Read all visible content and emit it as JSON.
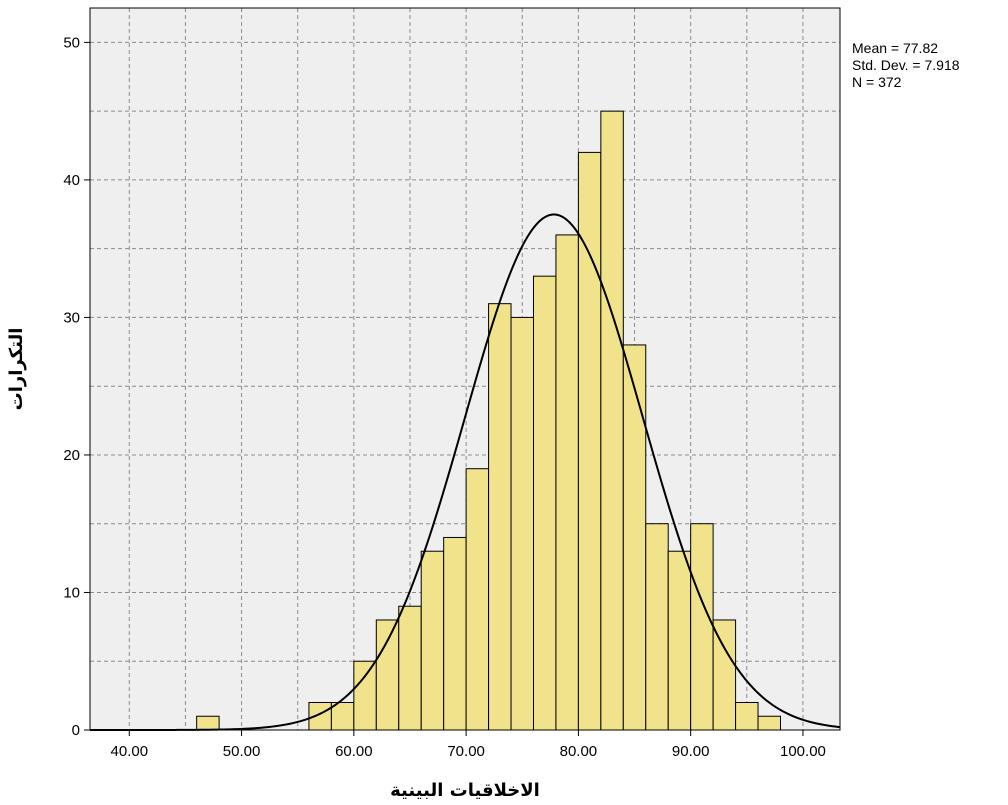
{
  "chart_data": {
    "type": "bar",
    "subtype": "histogram",
    "xlabel": "الاخلاقيات البينية",
    "ylabel": "التكرارات",
    "x_ticks": [
      "40.00",
      "50.00",
      "60.00",
      "70.00",
      "80.00",
      "90.00",
      "100.00"
    ],
    "y_ticks": [
      "0",
      "10",
      "20",
      "30",
      "40",
      "50"
    ],
    "xlim": [
      36.5,
      103.3
    ],
    "ylim": [
      0,
      52.5
    ],
    "bin_width": 2,
    "bins": [
      {
        "start": 46,
        "end": 48,
        "count": 1
      },
      {
        "start": 56,
        "end": 58,
        "count": 2
      },
      {
        "start": 58,
        "end": 60,
        "count": 2
      },
      {
        "start": 60,
        "end": 62,
        "count": 5
      },
      {
        "start": 62,
        "end": 64,
        "count": 8
      },
      {
        "start": 64,
        "end": 66,
        "count": 9
      },
      {
        "start": 66,
        "end": 68,
        "count": 13
      },
      {
        "start": 68,
        "end": 70,
        "count": 14
      },
      {
        "start": 70,
        "end": 72,
        "count": 19
      },
      {
        "start": 72,
        "end": 74,
        "count": 31
      },
      {
        "start": 74,
        "end": 76,
        "count": 30
      },
      {
        "start": 76,
        "end": 78,
        "count": 33
      },
      {
        "start": 78,
        "end": 80,
        "count": 36
      },
      {
        "start": 80,
        "end": 82,
        "count": 42
      },
      {
        "start": 82,
        "end": 84,
        "count": 45
      },
      {
        "start": 84,
        "end": 86,
        "count": 28
      },
      {
        "start": 86,
        "end": 88,
        "count": 15
      },
      {
        "start": 88,
        "end": 90,
        "count": 13
      },
      {
        "start": 90,
        "end": 92,
        "count": 15
      },
      {
        "start": 92,
        "end": 94,
        "count": 8
      },
      {
        "start": 94,
        "end": 96,
        "count": 2
      },
      {
        "start": 96,
        "end": 98,
        "count": 1
      }
    ],
    "normal_curve": {
      "mean": 77.82,
      "std_dev": 7.918,
      "n": 372
    },
    "grid": true,
    "legend_position": "top-right",
    "stats_text": {
      "mean": "Mean = 77.82",
      "std_dev": "Std. Dev. = 7.918",
      "n": "N = 372"
    },
    "colors": {
      "bar_fill": "#F1E38B",
      "bar_stroke": "#000000",
      "plot_background": "#EFEFEF",
      "grid_line": "#8C8C8C",
      "curve": "#000000"
    }
  }
}
